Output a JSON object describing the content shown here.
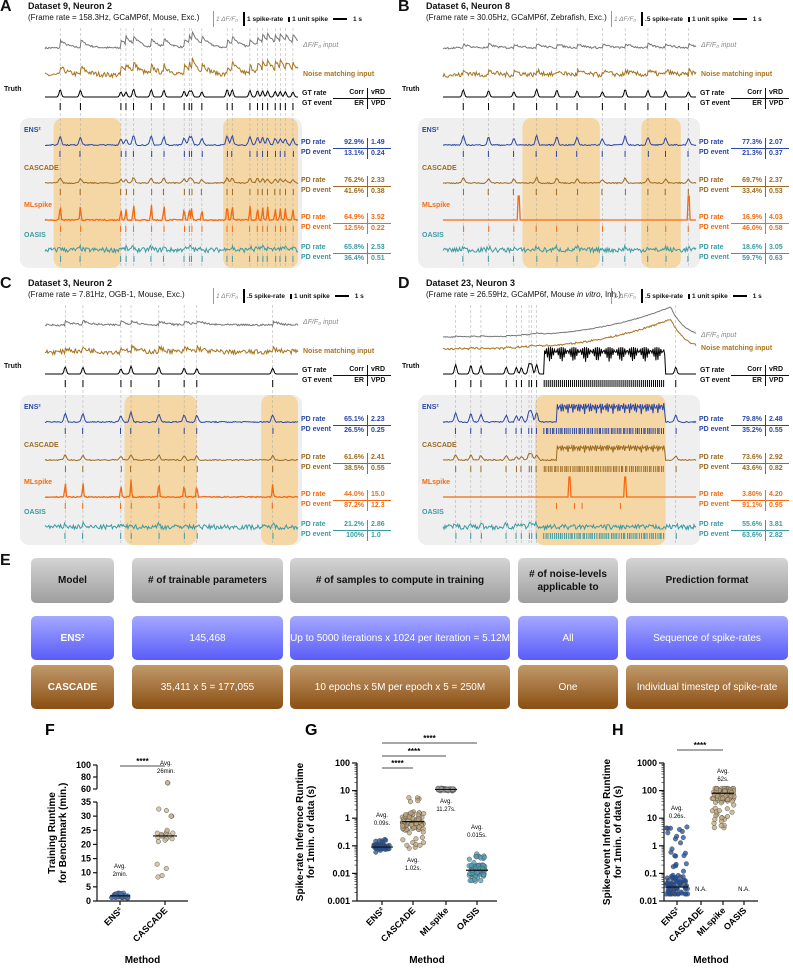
{
  "common": {
    "df_input": "ΔF/F₀ input",
    "noise_input": "Noise matching input",
    "truth": "Truth",
    "gt_rate": "GT rate",
    "gt_event": "GT event",
    "pd_rate": "PD rate",
    "pd_event": "PD event",
    "corr": "Corr",
    "vrd": "vRD",
    "er": "ER",
    "vpd": "VPD"
  },
  "colors": {
    "ens": "#2b47a6",
    "cascade": "#9b6b22",
    "mlspike": "#f26b12",
    "oasis": "#3a9ba3",
    "noise": "#a8741e",
    "df": "#777777",
    "highlight": "#f5d7a6",
    "box": "#efefef"
  },
  "panels": [
    {
      "letter": "A",
      "title": "Dataset 9, Neuron 2",
      "sub_pre": "(Frame rate = 158.3Hz, GCaMP6f, Mouse, Exc.)",
      "sub_it": "",
      "sub_post": "",
      "scale": {
        "df": "1 ΔF/F₀",
        "rate": "1 spike-rate",
        "spike": "1 unit spike",
        "time": "1 s"
      },
      "methods": [
        {
          "name": "ENS²",
          "corr": "92.9%",
          "vrd": "1.49",
          "er": "13.1%",
          "vpd": "0.24"
        },
        {
          "name": "CASCADE",
          "corr": "76.2%",
          "vrd": "2.33",
          "er": "41.6%",
          "vpd": "0.38"
        },
        {
          "name": "MLspike",
          "corr": "64.9%",
          "vrd": "3.52",
          "er": "12.5%",
          "vpd": "0.22"
        },
        {
          "name": "OASIS",
          "corr": "65.8%",
          "vrd": "2.53",
          "er": "36.4%",
          "vpd": "0.51"
        }
      ]
    },
    {
      "letter": "B",
      "title": "Dataset 6, Neuron 8",
      "sub_pre": "(Frame rate = 30.05Hz, GCaMP6f, Zebrafish, Exc.)",
      "sub_it": "",
      "sub_post": "",
      "scale": {
        "df": "1 ΔF/F₀",
        "rate": ".5 spike-rate",
        "spike": "1 unit spike",
        "time": "1 s"
      },
      "methods": [
        {
          "name": "ENS²",
          "corr": "77.3%",
          "vrd": "2.07",
          "er": "21.3%",
          "vpd": "0.37"
        },
        {
          "name": "CASCADE",
          "corr": "69.7%",
          "vrd": "2.37",
          "er": "33.4%",
          "vpd": "0.53"
        },
        {
          "name": "MLspike",
          "corr": "16.9%",
          "vrd": "4.03",
          "er": "46.0%",
          "vpd": "0.58"
        },
        {
          "name": "OASIS",
          "corr": "18.6%",
          "vrd": "3.05",
          "er": "59.7%",
          "vpd": "0.63"
        }
      ]
    },
    {
      "letter": "C",
      "title": "Dataset 3, Neuron 2",
      "sub_pre": "(Frame rate = 7.81Hz, OGB-1, Mouse, Exc.)",
      "sub_it": "",
      "sub_post": "",
      "scale": {
        "df": "1 ΔF/F₀",
        "rate": ".5 spike-rate",
        "spike": "1 unit spike",
        "time": "1 s"
      },
      "methods": [
        {
          "name": "ENS²",
          "corr": "65.1%",
          "vrd": "2.23",
          "er": "26.5%",
          "vpd": "0.25"
        },
        {
          "name": "CASCADE",
          "corr": "61.6%",
          "vrd": "2.41",
          "er": "38.5%",
          "vpd": "0.55"
        },
        {
          "name": "MLspike",
          "corr": "44.0%",
          "vrd": "15.0",
          "er": "87.2%",
          "vpd": "12.3"
        },
        {
          "name": "OASIS",
          "corr": "21.2%",
          "vrd": "2.86",
          "er": "100%",
          "vpd": "1.0"
        }
      ]
    },
    {
      "letter": "D",
      "title": "Dataset 23, Neuron 3",
      "sub_pre": "(Frame rate = 26.59Hz, GCaMP6f, Mouse ",
      "sub_it": "in vitro",
      "sub_post": ", Inh.)",
      "scale": {
        "df": "1 ΔF/F₀",
        "rate": ".5 spike-rate",
        "spike": "1 unit spike",
        "time": "1 s"
      },
      "methods": [
        {
          "name": "ENS²",
          "corr": "79.8%",
          "vrd": "2.48",
          "er": "35.2%",
          "vpd": "0.55"
        },
        {
          "name": "CASCADE",
          "corr": "73.6%",
          "vrd": "2.92",
          "er": "43.6%",
          "vpd": "0.82"
        },
        {
          "name": "MLspike",
          "corr": "3.80%",
          "vrd": "4.20",
          "er": "91.1%",
          "vpd": "0.95"
        },
        {
          "name": "OASIS",
          "corr": "55.6%",
          "vrd": "3.81",
          "er": "63.6%",
          "vpd": "2.82"
        }
      ]
    }
  ],
  "table": {
    "letter": "E",
    "headers": [
      "Model",
      "# of trainable parameters",
      "# of samples to compute in training",
      "# of noise-levels applicable to",
      "Prediction format"
    ],
    "rows": [
      [
        "ENS²",
        "145,468",
        "Up to 5000 iterations x 1024 per iteration = 5.12M",
        "All",
        "Sequence of spike-rates"
      ],
      [
        "CASCADE",
        "35,411 x 5 = 177,055",
        "10 epochs x 5M per epoch x 5 = 250M",
        "One",
        "Individual timestep of spike-rate"
      ]
    ]
  },
  "chart_data": [
    {
      "letter": "F",
      "type": "scatter",
      "xlabel": "Method",
      "ylabel": [
        "Training Runtime",
        "for Benchmark (min.)"
      ],
      "categories": [
        "ENS²",
        "CASCADE"
      ],
      "ylim_lower": [
        0,
        35
      ],
      "ylim_upper": [
        60,
        100
      ],
      "yticks_lower": [
        "0",
        "5",
        "10",
        "15",
        "20",
        "25",
        "30",
        "35"
      ],
      "yticks_upper": [
        "60",
        "80",
        "100"
      ],
      "series": [
        {
          "category": "ENS²",
          "avg": [
            "Avg.",
            "2min."
          ],
          "median": 1.8,
          "range": [
            0.5,
            5
          ],
          "color": "#3f6fb8"
        },
        {
          "category": "CASCADE",
          "avg": [
            "Avg.",
            "26min."
          ],
          "median": 23,
          "range": [
            8,
            70
          ],
          "color": "#c8b48e"
        }
      ],
      "significance": [
        {
          "pair": [
            "ENS²",
            "CASCADE"
          ],
          "label": "****"
        }
      ]
    },
    {
      "letter": "G",
      "type": "scatter",
      "yscale": "log",
      "xlabel": "Method",
      "ylabel": [
        "Spike-rate Inference Runtime",
        "for 1min. of data (s)"
      ],
      "categories": [
        "ENS²",
        "CASCADE",
        "MLspike",
        "OASIS"
      ],
      "ylim": [
        0.001,
        100
      ],
      "yticks": [
        "0.001",
        "0.01",
        "0.1",
        "1",
        "10",
        "100"
      ],
      "series": [
        {
          "category": "ENS²",
          "avg": [
            "Avg.",
            "0.09s."
          ],
          "median": 0.09,
          "range": [
            0.055,
            0.17
          ],
          "color": "#1f4f9c"
        },
        {
          "category": "CASCADE",
          "avg": [
            "Avg.",
            "1.02s."
          ],
          "median": 0.75,
          "range": [
            0.07,
            8
          ],
          "color": "#bfa57a"
        },
        {
          "category": "MLspike",
          "avg": [
            "Avg.",
            "11.27s."
          ],
          "median": 11,
          "range": [
            9.5,
            12.5
          ],
          "color": "#a9a9a9"
        },
        {
          "category": "OASIS",
          "avg": [
            "Avg.",
            "0.015s."
          ],
          "median": 0.013,
          "range": [
            0.005,
            0.06
          ],
          "color": "#4fa2b8"
        }
      ],
      "significance": [
        {
          "pair": [
            "ENS²",
            "CASCADE"
          ],
          "label": "****"
        },
        {
          "pair": [
            "ENS²",
            "MLspike"
          ],
          "label": "****"
        },
        {
          "pair": [
            "ENS²",
            "OASIS"
          ],
          "label": "****"
        }
      ]
    },
    {
      "letter": "H",
      "type": "scatter",
      "yscale": "log",
      "xlabel": "Method",
      "ylabel": [
        "Spike-event Inference Runtime",
        "for 1min. of data (s)"
      ],
      "categories": [
        "ENS²",
        "CASCADE",
        "MLspike",
        "OASIS"
      ],
      "ylim": [
        0.01,
        1000
      ],
      "yticks": [
        "0.01",
        "0.1",
        "1",
        "10",
        "100",
        "1000"
      ],
      "series": [
        {
          "category": "ENS²",
          "avg": [
            "Avg.",
            "0.26s."
          ],
          "median": 0.032,
          "range": [
            0.018,
            5
          ],
          "color": "#1f4f9c"
        },
        {
          "category": "CASCADE",
          "na": "N.A."
        },
        {
          "category": "MLspike",
          "avg": [
            "Avg.",
            "62s."
          ],
          "median": 80,
          "range": [
            4.5,
            120
          ],
          "color": "#bfa57a"
        },
        {
          "category": "OASIS",
          "na": "N.A."
        }
      ],
      "significance": [
        {
          "pair": [
            "ENS²",
            "MLspike"
          ],
          "label": "****"
        }
      ]
    }
  ]
}
